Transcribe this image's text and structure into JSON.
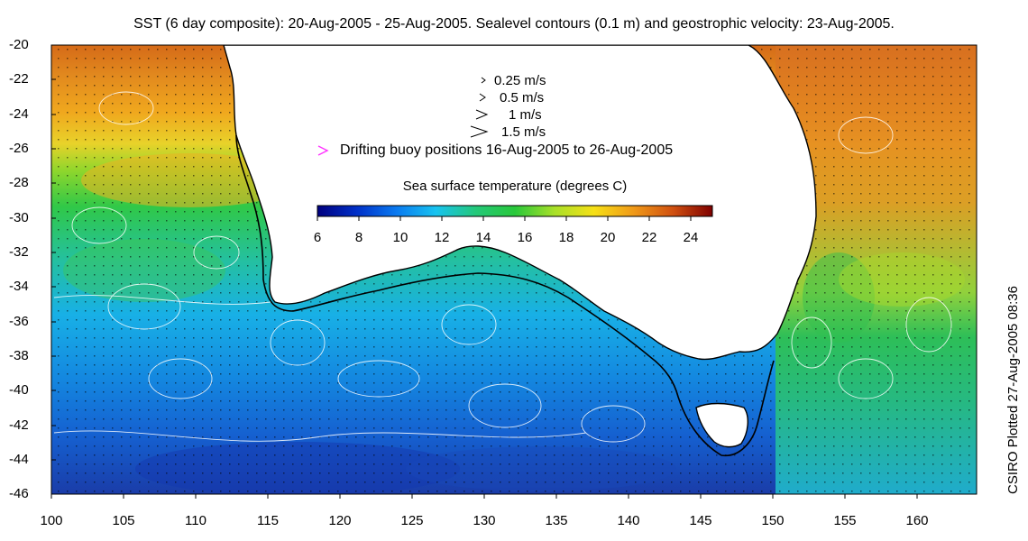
{
  "title": "SST (6 day composite): 20-Aug-2005 - 25-Aug-2005. Sealevel contours (0.1 m) and geostrophic velocity: 23-Aug-2005.",
  "side_text": "CSIRO Plotted 27-Aug-2005 08:36",
  "y_axis": {
    "ticks": [
      "-20",
      "-22",
      "-24",
      "-26",
      "-28",
      "-30",
      "-32",
      "-34",
      "-36",
      "-38",
      "-40",
      "-42",
      "-44",
      "-46"
    ],
    "range": [
      -46,
      -20
    ]
  },
  "x_axis": {
    "ticks": [
      "100",
      "105",
      "110",
      "115",
      "120",
      "125",
      "130",
      "135",
      "140",
      "145",
      "150",
      "155",
      "160"
    ],
    "range": [
      100,
      164
    ]
  },
  "legend": {
    "velocity": [
      "0.25 m/s",
      "0.5 m/s",
      "1 m/s",
      "1.5 m/s"
    ],
    "buoy": "Drifting buoy positions 16-Aug-2005 to 26-Aug-2005",
    "buoy_color": "#ff33ff"
  },
  "colorbar": {
    "title": "Sea surface temperature (degrees C)",
    "ticks": [
      "6",
      "8",
      "10",
      "12",
      "14",
      "16",
      "18",
      "20",
      "22",
      "24"
    ],
    "range": [
      6,
      25
    ],
    "colors": [
      "#00007f",
      "#0030c8",
      "#0a7af0",
      "#18c3f0",
      "#23c87a",
      "#28c83a",
      "#a8e028",
      "#f6e016",
      "#f09a18",
      "#d05010",
      "#7f0000"
    ]
  }
}
